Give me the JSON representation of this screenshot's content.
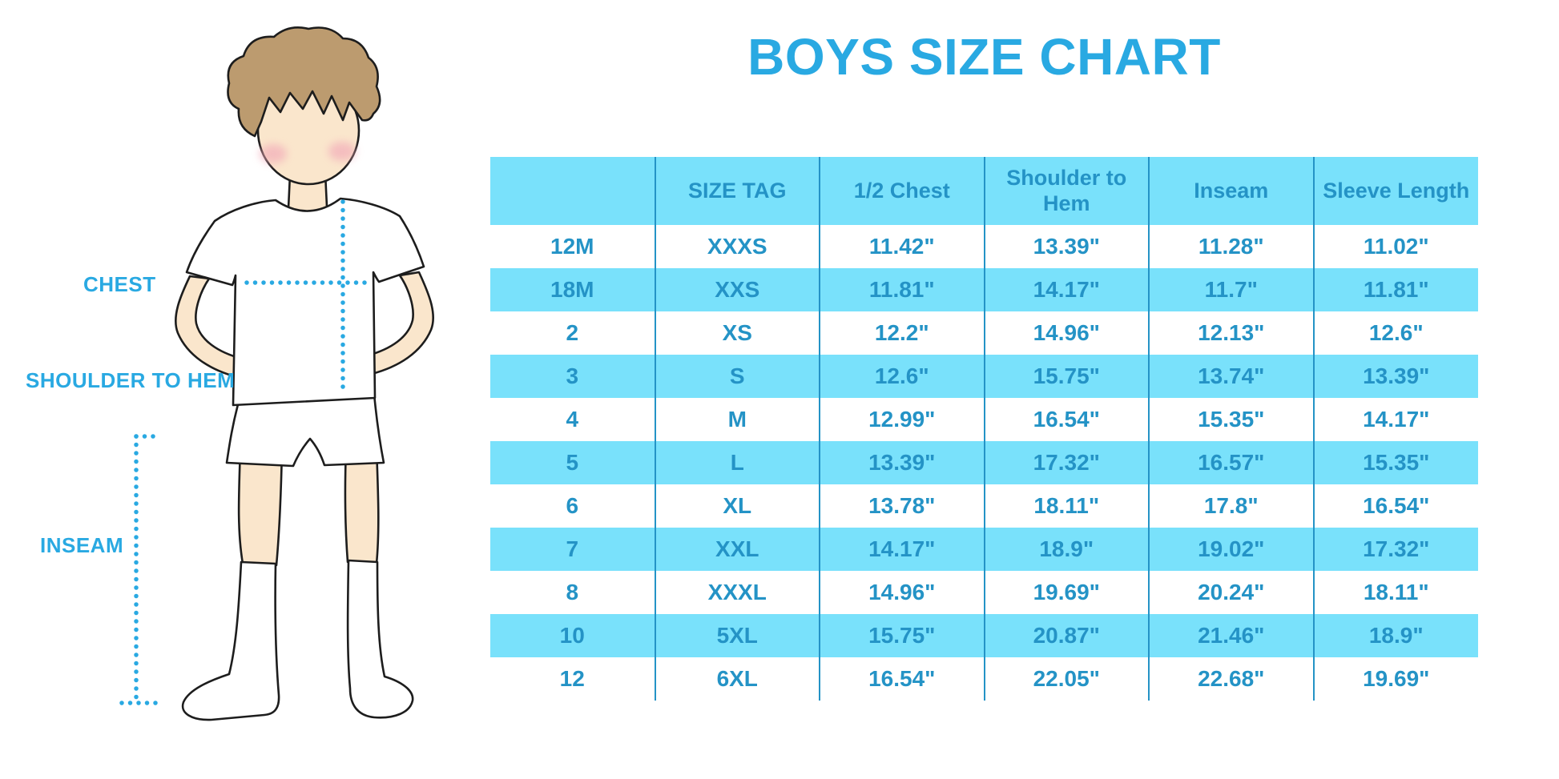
{
  "title": "BOYS SIZE CHART",
  "figure": {
    "labels": {
      "chest": "CHEST",
      "shoulder_to_hem": "SHOULDER TO HEM",
      "inseam": "INSEAM"
    }
  },
  "colors": {
    "accent": "#29A9E2",
    "stripe": "#79E1FB",
    "text": "#2493C6",
    "line": "#2493C6",
    "skin": "#FAE6CC",
    "hair": "#BC9B6F",
    "blush": "#F2A9B8",
    "outline": "#1D1D1D"
  },
  "chart_data": {
    "type": "table",
    "title": "BOYS SIZE CHART",
    "units": "inches",
    "columns": [
      "",
      "SIZE TAG",
      "1/2 Chest",
      "Shoulder to Hem",
      "Inseam",
      "Sleeve Length"
    ],
    "rows": [
      [
        "12M",
        "XXXS",
        "11.42\"",
        "13.39\"",
        "11.28\"",
        "11.02\""
      ],
      [
        "18M",
        "XXS",
        "11.81\"",
        "14.17\"",
        "11.7\"",
        "11.81\""
      ],
      [
        "2",
        "XS",
        "12.2\"",
        "14.96\"",
        "12.13\"",
        "12.6\""
      ],
      [
        "3",
        "S",
        "12.6\"",
        "15.75\"",
        "13.74\"",
        "13.39\""
      ],
      [
        "4",
        "M",
        "12.99\"",
        "16.54\"",
        "15.35\"",
        "14.17\""
      ],
      [
        "5",
        "L",
        "13.39\"",
        "17.32\"",
        "16.57\"",
        "15.35\""
      ],
      [
        "6",
        "XL",
        "13.78\"",
        "18.11\"",
        "17.8\"",
        "16.54\""
      ],
      [
        "7",
        "XXL",
        "14.17\"",
        "18.9\"",
        "19.02\"",
        "17.32\""
      ],
      [
        "8",
        "XXXL",
        "14.96\"",
        "19.69\"",
        "20.24\"",
        "18.11\""
      ],
      [
        "10",
        "5XL",
        "15.75\"",
        "20.87\"",
        "21.46\"",
        "18.9\""
      ],
      [
        "12",
        "6XL",
        "16.54\"",
        "22.05\"",
        "22.68\"",
        "19.69\""
      ]
    ],
    "layout": {
      "header_background": "#79E1FB",
      "alternating_row_background": "#79E1FB",
      "column_separators": true,
      "horizontal_rules": false
    }
  }
}
